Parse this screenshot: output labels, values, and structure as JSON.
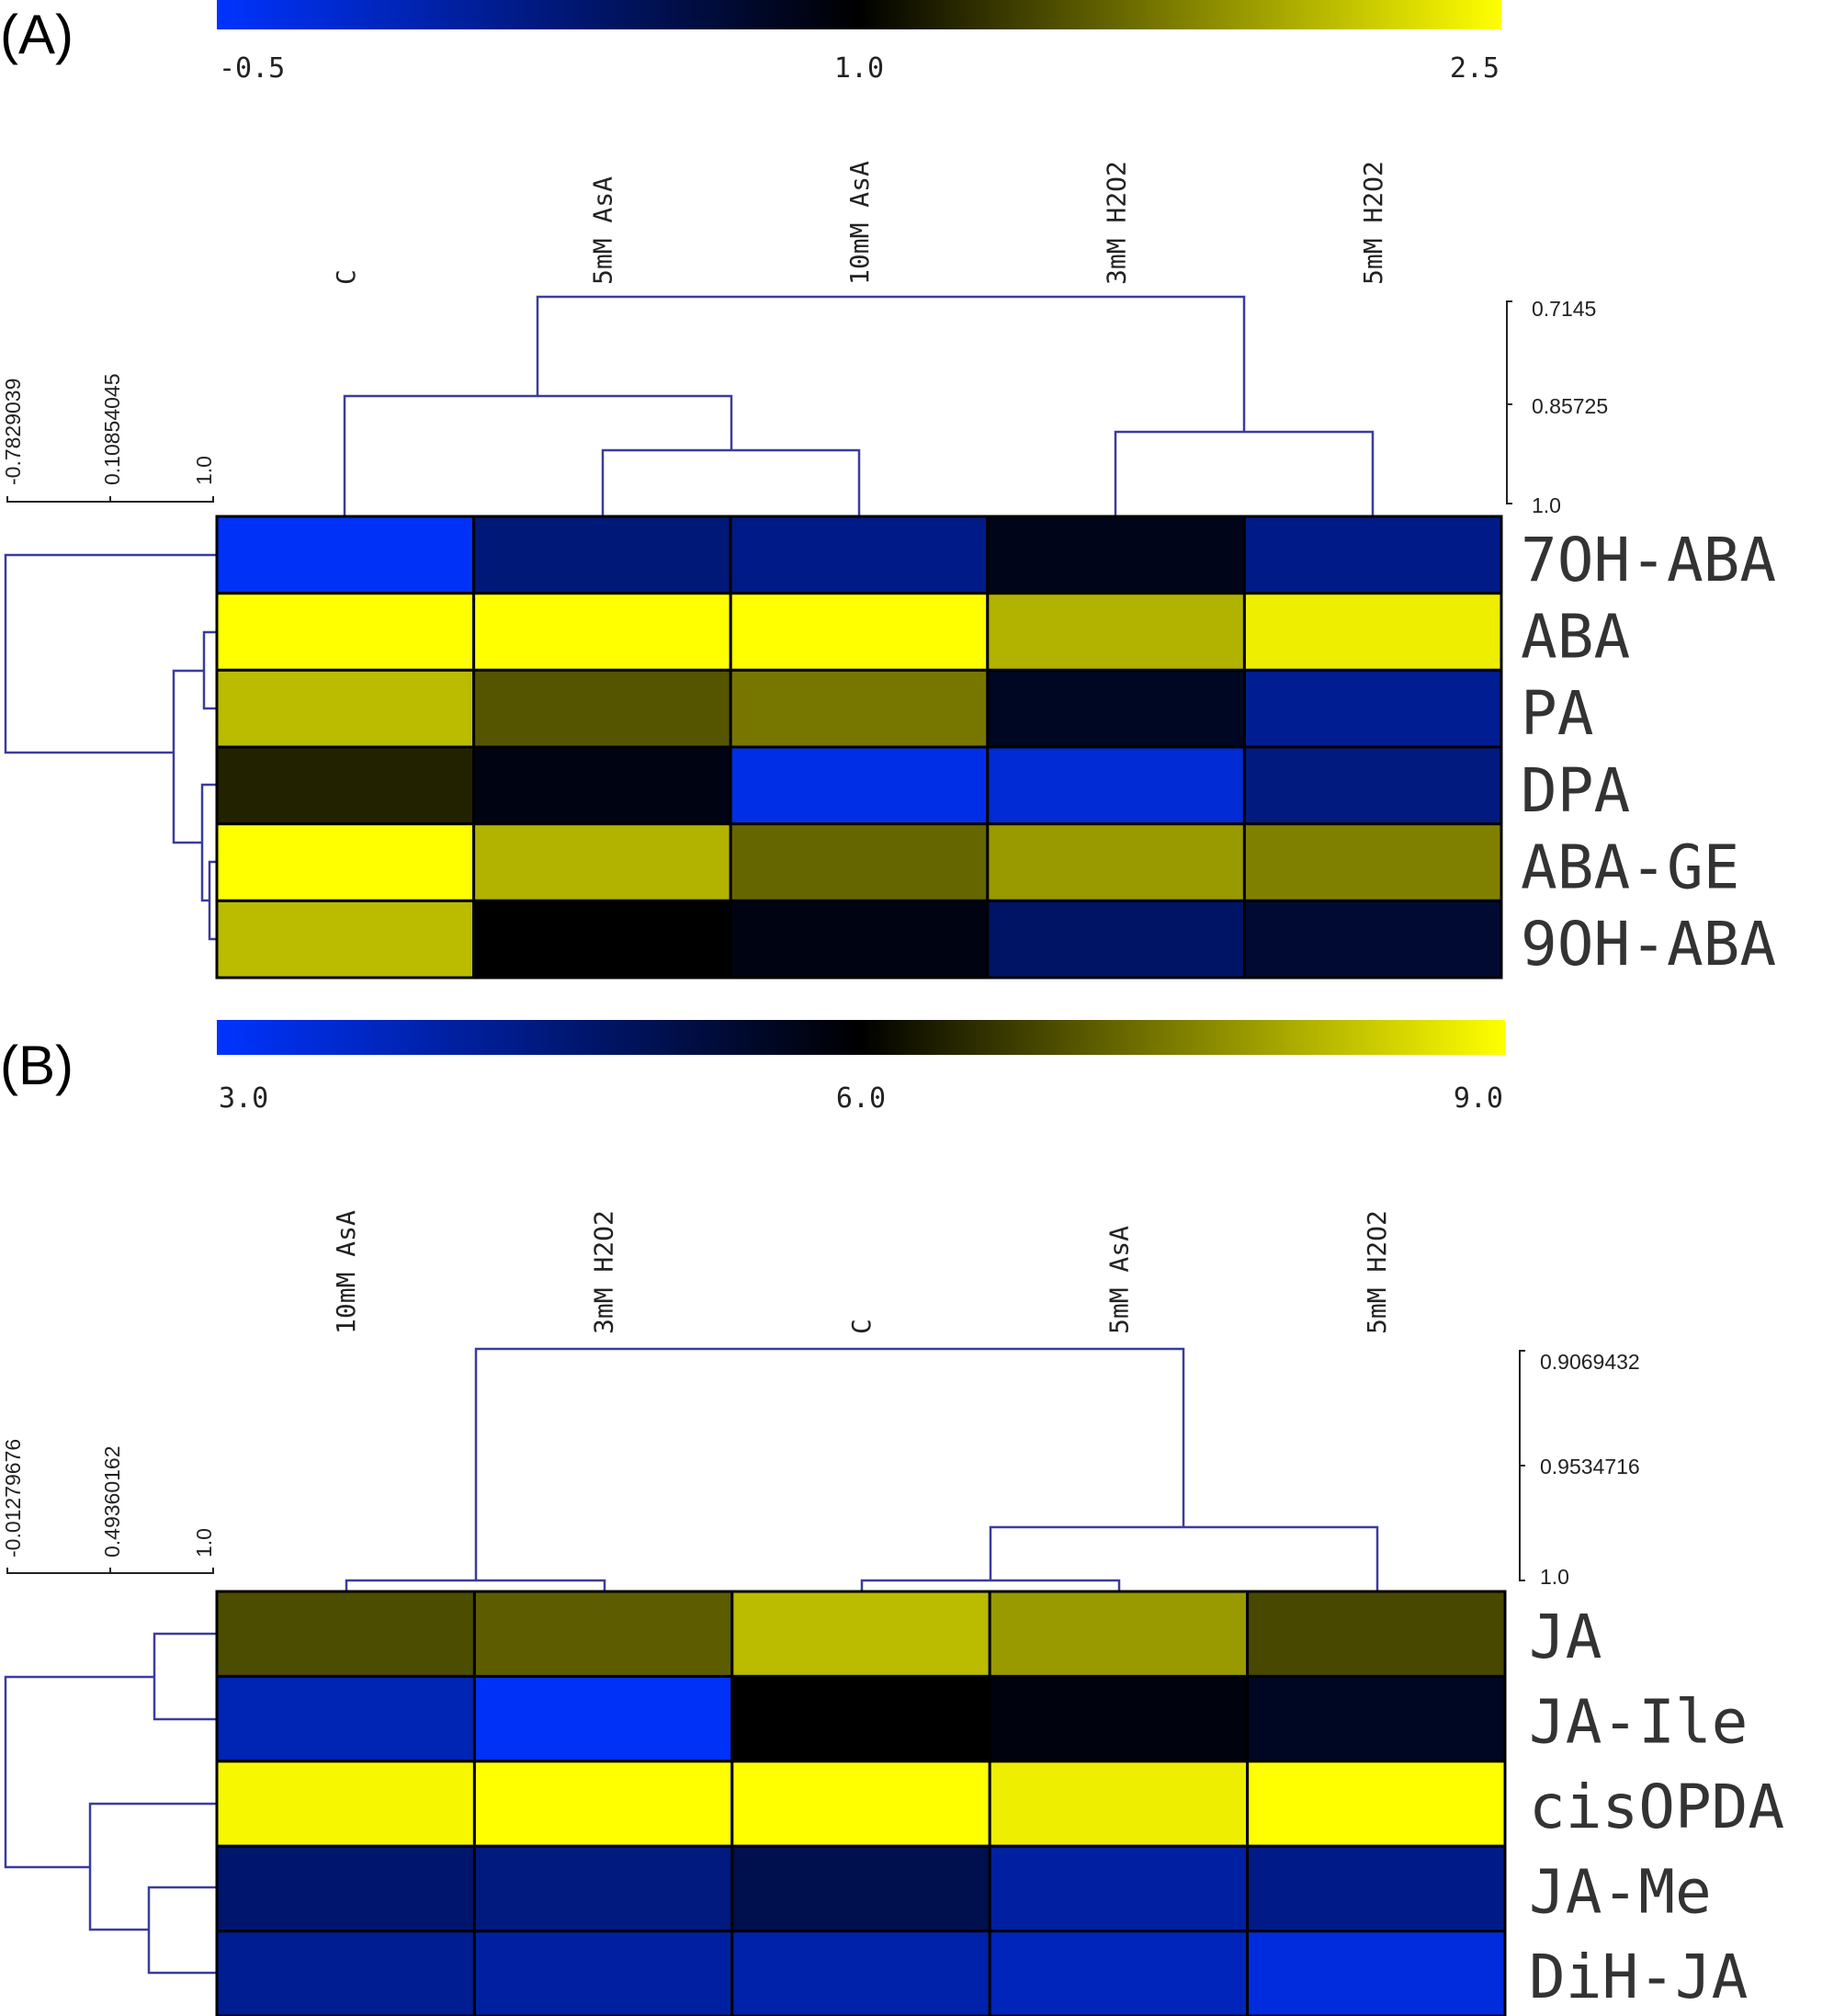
{
  "chart_data": [
    {
      "type": "heatmap",
      "panel_label": "(A)",
      "colorbar": {
        "colors": [
          "#0033ff",
          "#000000",
          "#ffff00"
        ],
        "ticks": [
          "-0.5",
          "1.0",
          "2.5"
        ],
        "min": -0.5,
        "mid": 1.0,
        "max": 2.5
      },
      "columns": [
        "C",
        "5mM AsA",
        "10mM AsA",
        "3mM H2O2",
        "5mM H2O2"
      ],
      "rows": [
        "7OH-ABA",
        "ABA",
        "PA",
        "DPA",
        "ABA-GE",
        "9OH-ABA"
      ],
      "values": [
        [
          -0.45,
          0.3,
          0.2,
          0.85,
          0.2
        ],
        [
          2.5,
          2.5,
          2.5,
          2.05,
          2.4
        ],
        [
          2.1,
          1.5,
          1.7,
          0.8,
          0.15
        ],
        [
          1.2,
          0.9,
          -0.35,
          -0.25,
          0.25
        ],
        [
          2.5,
          2.05,
          1.6,
          1.9,
          1.75
        ],
        [
          2.1,
          1.0,
          0.9,
          0.4,
          0.7
        ]
      ],
      "column_dendrogram": {
        "scale_ticks": [
          "0.7145",
          "0.85725",
          "1.0"
        ],
        "range": [
          0.7145,
          1.0
        ]
      },
      "row_dendrogram": {
        "scale_ticks": [
          "-0.7829039",
          "0.10854045",
          "1.0"
        ],
        "range": [
          -0.7829039,
          1.0
        ]
      }
    },
    {
      "type": "heatmap",
      "panel_label": "(B)",
      "colorbar": {
        "colors": [
          "#0033ff",
          "#000000",
          "#ffff00"
        ],
        "ticks": [
          "3.0",
          "6.0",
          "9.0"
        ],
        "min": 3.0,
        "mid": 6.0,
        "max": 9.0
      },
      "columns": [
        "10mM AsA",
        "3mM H2O2",
        "C",
        "5mM AsA",
        "5mM H2O2"
      ],
      "rows": [
        "JA",
        "JA-Ile",
        "cisOPDA",
        "JA-Me",
        "DiH-JA"
      ],
      "values": [
        [
          6.9,
          7.1,
          8.2,
          7.8,
          6.85
        ],
        [
          3.9,
          3.1,
          6.0,
          5.85,
          5.6
        ],
        [
          8.9,
          9.0,
          9.0,
          8.8,
          9.0
        ],
        [
          4.7,
          4.5,
          5.1,
          4.1,
          4.4
        ],
        [
          4.3,
          4.1,
          4.0,
          3.8,
          3.4
        ]
      ],
      "column_dendrogram": {
        "scale_ticks": [
          "0.9069432",
          "0.9534716",
          "1.0"
        ],
        "range": [
          0.9069432,
          1.0
        ]
      },
      "row_dendrogram": {
        "scale_ticks": [
          "-0.01279676",
          "0.49360162",
          "1.0"
        ],
        "range": [
          -0.01279676,
          1.0
        ]
      }
    }
  ]
}
